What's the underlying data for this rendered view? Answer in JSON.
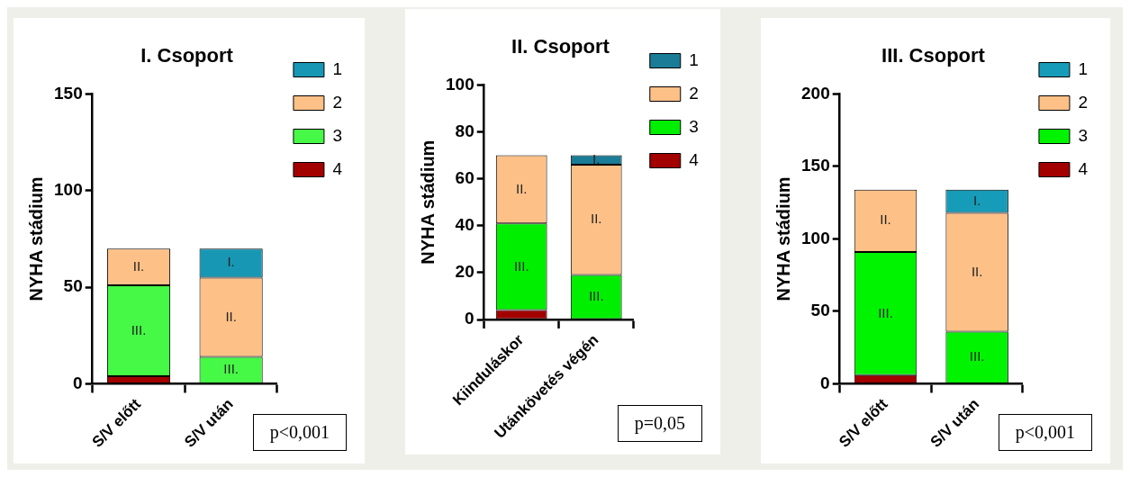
{
  "chart_data": [
    {
      "type": "bar",
      "title": "I. Csoport",
      "ylabel": "NYHA stádium",
      "categories": [
        "S/V előtt",
        "S/V után"
      ],
      "stacked": true,
      "ylim": [
        0,
        150
      ],
      "yticks": [
        0,
        50,
        100,
        150
      ],
      "grid": false,
      "legend": "top right",
      "annotations": [
        "p<0,001"
      ],
      "series": [
        {
          "name": "4",
          "color": "#a30000",
          "values": [
            4,
            0
          ],
          "value_labels": [
            null,
            null
          ]
        },
        {
          "name": "3",
          "color": "#46f946",
          "values": [
            47,
            14
          ],
          "value_labels": [
            "III.",
            "III."
          ]
        },
        {
          "name": "2",
          "color": "#fdc087",
          "values": [
            19,
            41
          ],
          "value_labels": [
            "II.",
            "II."
          ]
        },
        {
          "name": "1",
          "color": "#1797b4",
          "values": [
            0,
            15
          ],
          "value_labels": [
            null,
            "I."
          ]
        }
      ]
    },
    {
      "type": "bar",
      "title": "II. Csoport",
      "ylabel": "NYHA stádium",
      "categories": [
        "Kiinduláskor",
        "Utánkövetés végén"
      ],
      "stacked": true,
      "ylim": [
        0,
        100
      ],
      "yticks": [
        0,
        20,
        40,
        60,
        80,
        100
      ],
      "grid": false,
      "legend": "top right",
      "annotations": [
        "p=0,05"
      ],
      "series": [
        {
          "name": "4",
          "color": "#a30000",
          "values": [
            4,
            0
          ],
          "value_labels": [
            null,
            null
          ]
        },
        {
          "name": "3",
          "color": "#00ee00",
          "values": [
            37,
            19
          ],
          "value_labels": [
            "III.",
            "III."
          ]
        },
        {
          "name": "2",
          "color": "#fdc087",
          "values": [
            29,
            47
          ],
          "value_labels": [
            "II.",
            "II."
          ]
        },
        {
          "name": "1",
          "color": "#1a7c96",
          "values": [
            0,
            4
          ],
          "value_labels": [
            null,
            "I."
          ]
        }
      ]
    },
    {
      "type": "bar",
      "title": "III. Csoport",
      "ylabel": "NYHA stádium",
      "categories": [
        "S/V előtt",
        "S/V után"
      ],
      "stacked": true,
      "ylim": [
        0,
        200
      ],
      "yticks": [
        0,
        50,
        100,
        150,
        200
      ],
      "grid": false,
      "legend": "top right",
      "annotations": [
        "p<0,001"
      ],
      "series": [
        {
          "name": "4",
          "color": "#a30000",
          "values": [
            6,
            0
          ],
          "value_labels": [
            null,
            null
          ]
        },
        {
          "name": "3",
          "color": "#00f400",
          "values": [
            85,
            36
          ],
          "value_labels": [
            "III.",
            "III."
          ]
        },
        {
          "name": "2",
          "color": "#fdc087",
          "values": [
            43,
            82
          ],
          "value_labels": [
            "II.",
            "II."
          ]
        },
        {
          "name": "1",
          "color": "#169cb8",
          "values": [
            0,
            16
          ],
          "value_labels": [
            null,
            "I."
          ]
        }
      ]
    }
  ]
}
